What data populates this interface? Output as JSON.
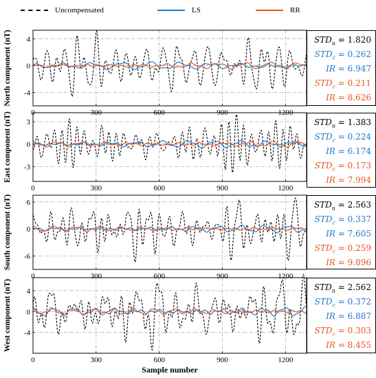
{
  "legend": [
    {
      "label": "Uncompensated",
      "color": "#000000",
      "style": "dashed"
    },
    {
      "label": "LS",
      "color": "#1f77d0",
      "style": "solid"
    },
    {
      "label": "RR",
      "color": "#e8561f",
      "style": "solid"
    }
  ],
  "colors": {
    "uncompensated": "#000000",
    "ls": "#1f77d0",
    "rr": "#e8561f",
    "grid": "#8a8a8a"
  },
  "xlabel": "Sample number",
  "chart_data": [
    {
      "type": "line",
      "ylabel": "North component (nT)",
      "xlim": [
        0,
        1300
      ],
      "ylim": [
        -6,
        5.3
      ],
      "xticks": [
        0,
        300,
        600,
        900,
        1200
      ],
      "yticks": [
        -4,
        0,
        4
      ],
      "grid": true,
      "series": [
        {
          "name": "Uncompensated",
          "amplitude_std": 1.82
        },
        {
          "name": "LS",
          "amplitude_std": 0.262
        },
        {
          "name": "RR",
          "amplitude_std": 0.211
        }
      ],
      "stats": {
        "std_u": "1.820",
        "std_c_ls": "0.262",
        "ir_ls": "6.947",
        "std_c_rr": "0.211",
        "ir_rr": "8.626"
      }
    },
    {
      "type": "line",
      "ylabel": "East component (nT)",
      "xlim": [
        0,
        1300
      ],
      "ylim": [
        -5,
        4.2
      ],
      "xticks": [
        0,
        300,
        600,
        900,
        1200
      ],
      "yticks": [
        -3,
        0,
        3
      ],
      "grid": true,
      "series": [
        {
          "name": "Uncompensated",
          "amplitude_std": 1.383
        },
        {
          "name": "LS",
          "amplitude_std": 0.224
        },
        {
          "name": "RR",
          "amplitude_std": 0.173
        }
      ],
      "stats": {
        "std_u": "1.383",
        "std_c_ls": "0.224",
        "ir_ls": "6.174",
        "std_c_rr": "0.173",
        "ir_rr": "7.994"
      }
    },
    {
      "type": "line",
      "ylabel": "South component (nT)",
      "xlim": [
        0,
        1300
      ],
      "ylim": [
        -9,
        7.5
      ],
      "xticks": [
        0,
        300,
        600,
        900,
        1200
      ],
      "yticks": [
        -6,
        0,
        6
      ],
      "grid": true,
      "series": [
        {
          "name": "Uncompensated",
          "amplitude_std": 2.563
        },
        {
          "name": "LS",
          "amplitude_std": 0.337
        },
        {
          "name": "RR",
          "amplitude_std": 0.259
        }
      ],
      "stats": {
        "std_u": "2.563",
        "std_c_ls": "0.337",
        "ir_ls": "7.605",
        "std_c_rr": "0.259",
        "ir_rr": "9.896"
      }
    },
    {
      "type": "line",
      "ylabel": "West component (nT)",
      "xlim": [
        0,
        1300
      ],
      "ylim": [
        -8,
        6.5
      ],
      "xticks": [
        0,
        300,
        600,
        900,
        1200
      ],
      "yticks": [
        -4,
        0,
        4
      ],
      "grid": true,
      "series": [
        {
          "name": "Uncompensated",
          "amplitude_std": 2.562
        },
        {
          "name": "LS",
          "amplitude_std": 0.372
        },
        {
          "name": "RR",
          "amplitude_std": 0.303
        }
      ],
      "stats": {
        "std_u": "2.562",
        "std_c_ls": "0.372",
        "ir_ls": "6.887",
        "std_c_rr": "0.303",
        "ir_rr": "8.455"
      }
    }
  ]
}
